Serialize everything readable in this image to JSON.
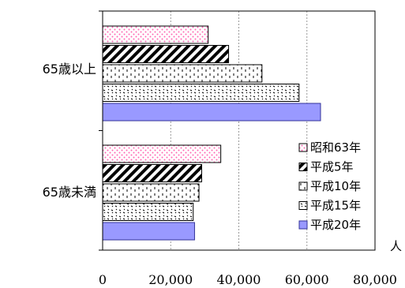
{
  "chart_data": {
    "type": "bar",
    "orientation": "horizontal",
    "categories": [
      "65歳以上",
      "65歳未満"
    ],
    "series": [
      {
        "name": "昭和63年",
        "values": [
          31000,
          34700
        ],
        "color": "#ff99cc",
        "pattern": "dots"
      },
      {
        "name": "平成5年",
        "values": [
          37000,
          29100
        ],
        "color": "#000000",
        "pattern": "diagonal"
      },
      {
        "name": "平成10年",
        "values": [
          46800,
          28300
        ],
        "color": "#000000",
        "pattern": "grid"
      },
      {
        "name": "平成15年",
        "values": [
          57700,
          26600
        ],
        "color": "#000000",
        "pattern": "dashes"
      },
      {
        "name": "平成20年",
        "values": [
          64000,
          27000
        ],
        "color": "#9999ff",
        "pattern": "solid"
      }
    ],
    "xlim": [
      0,
      80000
    ],
    "ticks": [
      "0",
      "20,000",
      "40,000",
      "60,000",
      "80,000"
    ],
    "tick_values": [
      0,
      20000,
      40000,
      60000,
      80000
    ],
    "xlabel": "人",
    "grid": "vertical-dashed",
    "legend_position": "right"
  }
}
